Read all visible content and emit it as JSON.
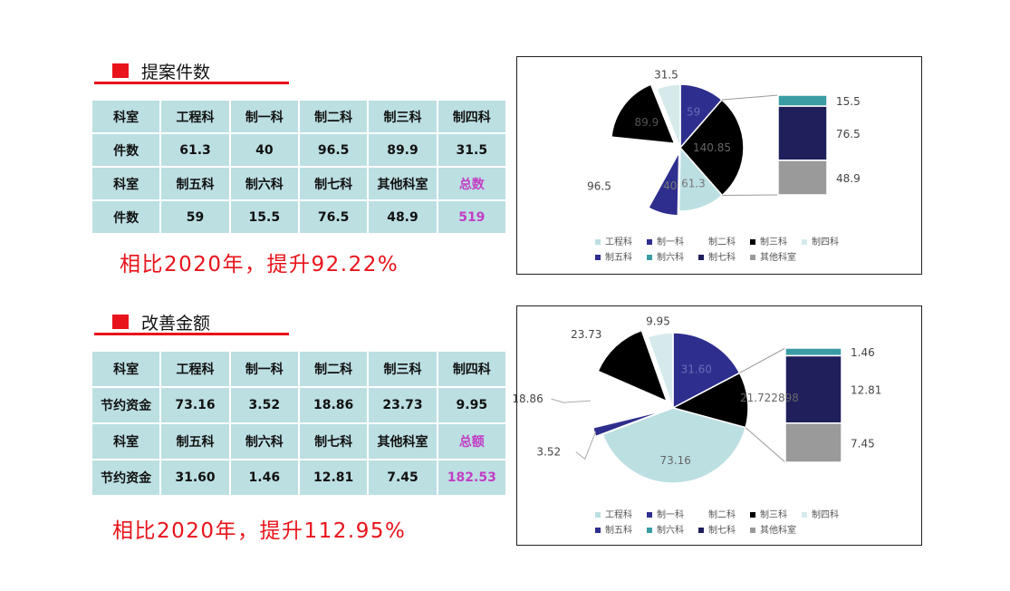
{
  "section1": {
    "title": "提案件数",
    "table": [
      [
        "科室",
        "工程科",
        "制一科",
        "制二科",
        "制三科",
        "制四科"
      ],
      [
        "件数",
        "61.3",
        "40",
        "96.5",
        "89.9",
        "31.5"
      ],
      [
        "科室",
        "制五科",
        "制六科",
        "制七科",
        "其他科室",
        "总数"
      ],
      [
        "件数",
        "59",
        "15.5",
        "76.5",
        "48.9",
        "519"
      ]
    ],
    "compare_text": "相比2020年，提升92.22%"
  },
  "section2": {
    "title": "改善金额",
    "table": [
      [
        "科室",
        "工程科",
        "制一科",
        "制二科",
        "制三科",
        "制四科"
      ],
      [
        "节约资金",
        "73.16",
        "3.52",
        "18.86",
        "23.73",
        "9.95"
      ],
      [
        "科室",
        "制五科",
        "制六科",
        "制七科",
        "其他科室",
        "总额"
      ],
      [
        "节约资金",
        "31.60",
        "1.46",
        "12.81",
        "7.45",
        "182.53"
      ]
    ],
    "compare_text": "相比2020年，提升112.95%"
  },
  "colors": {
    "accent_red": "#e8131b",
    "table_bg": "#bcdfe2",
    "total_text": "#c13ec4",
    "工程科": "#bcdfe2",
    "制一科": "#2e2e8e",
    "制二科": "#ffffff",
    "制三科": "#000000",
    "制四科": "#d6eaec",
    "制五科": "#2e2e8e",
    "制六科": "#3a9da4",
    "制七科": "#1f1f5c",
    "其他科室": "#9a9a9a"
  },
  "chart_data": [
    {
      "type": "pie",
      "subtype": "pie-of-pie (bar of pie)",
      "legend": [
        "工程科",
        "制一科",
        "制二科",
        "制三科",
        "制四科",
        "制五科",
        "制六科",
        "制七科",
        "其他科室"
      ],
      "legend_position": "bottom",
      "slices": [
        {
          "category": "制五科",
          "value": 59,
          "label": "59"
        },
        {
          "category": "other-group",
          "value": 140.85,
          "label": "140.85"
        },
        {
          "category": "工程科",
          "value": 61.3,
          "label": "61.3"
        },
        {
          "category": "制一科",
          "value": 40,
          "label": "40"
        },
        {
          "category": "制二科",
          "value": 96.5,
          "label": "96.5"
        },
        {
          "category": "制三科",
          "value": 89.9,
          "label": "89.9"
        },
        {
          "category": "制四科",
          "value": 31.5,
          "label": "31.5"
        }
      ],
      "secondary_bar": [
        {
          "category": "制六科",
          "value": 15.5,
          "label": "15.5"
        },
        {
          "category": "制七科",
          "value": 76.5,
          "label": "76.5"
        },
        {
          "category": "其他科室",
          "value": 48.9,
          "label": "48.9"
        }
      ]
    },
    {
      "type": "pie",
      "subtype": "pie-of-pie (bar of pie)",
      "legend": [
        "工程科",
        "制一科",
        "制二科",
        "制三科",
        "制四科",
        "制五科",
        "制六科",
        "制七科",
        "其他科室"
      ],
      "legend_position": "bottom",
      "slices": [
        {
          "category": "制五科",
          "value": 31.6,
          "label": "31.60"
        },
        {
          "category": "other-group",
          "value": 21.722898,
          "label": "21.722898"
        },
        {
          "category": "工程科",
          "value": 73.16,
          "label": "73.16"
        },
        {
          "category": "制一科",
          "value": 3.52,
          "label": "3.52"
        },
        {
          "category": "制二科",
          "value": 18.86,
          "label": "18.86"
        },
        {
          "category": "制三科",
          "value": 23.73,
          "label": "23.73"
        },
        {
          "category": "制四科",
          "value": 9.95,
          "label": "9.95"
        }
      ],
      "secondary_bar": [
        {
          "category": "制六科",
          "value": 1.46,
          "label": "1.46"
        },
        {
          "category": "制七科",
          "value": 12.81,
          "label": "12.81"
        },
        {
          "category": "其他科室",
          "value": 7.45,
          "label": "7.45"
        }
      ]
    }
  ]
}
